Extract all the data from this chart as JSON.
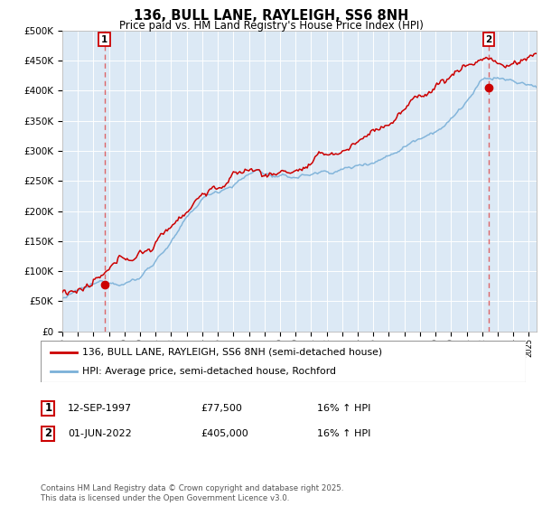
{
  "title": "136, BULL LANE, RAYLEIGH, SS6 8NH",
  "subtitle": "Price paid vs. HM Land Registry's House Price Index (HPI)",
  "legend_line1": "136, BULL LANE, RAYLEIGH, SS6 8NH (semi-detached house)",
  "legend_line2": "HPI: Average price, semi-detached house, Rochford",
  "annotation1_date": "12-SEP-1997",
  "annotation1_price": "£77,500",
  "annotation1_hpi": "16% ↑ HPI",
  "annotation2_date": "01-JUN-2022",
  "annotation2_price": "£405,000",
  "annotation2_hpi": "16% ↑ HPI",
  "footer": "Contains HM Land Registry data © Crown copyright and database right 2025.\nThis data is licensed under the Open Government Licence v3.0.",
  "sale1_x": 1997.71,
  "sale1_y": 77500,
  "sale2_x": 2022.42,
  "sale2_y": 405000,
  "ylim": [
    0,
    500000
  ],
  "xlim": [
    1995.0,
    2025.5
  ],
  "red_color": "#cc0000",
  "blue_color": "#7ab0d8",
  "plot_bg_color": "#dce9f5",
  "background_color": "#ffffff",
  "grid_color": "#ffffff",
  "vline_color": "#dd4444"
}
